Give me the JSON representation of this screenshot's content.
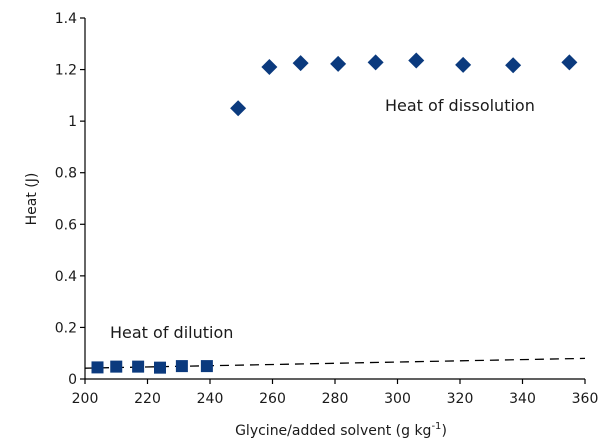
{
  "chart_data": {
    "type": "scatter",
    "xlabel": "Glycine/added solvent (g kg",
    "xlabel_sup": "-1",
    "xlabel_close": ")",
    "ylabel": "Heat (J)",
    "xlim": [
      200,
      360
    ],
    "ylim": [
      0,
      1.4
    ],
    "x_ticks": [
      "200",
      "220",
      "240",
      "260",
      "280",
      "300",
      "320",
      "340",
      "360"
    ],
    "y_ticks": [
      "0",
      "0.2",
      "0.4",
      "0.6",
      "0.8",
      "1",
      "1.2",
      "1.4"
    ],
    "grid": false,
    "colors": {
      "markers": "#0b3a7e",
      "axes": "#000000",
      "trend": "#000000"
    },
    "series": [
      {
        "marker": "diamond",
        "x": [
          249,
          259,
          269,
          281,
          293,
          306,
          321,
          337,
          355
        ],
        "y": [
          1.05,
          1.21,
          1.225,
          1.222,
          1.228,
          1.235,
          1.218,
          1.217,
          1.228
        ]
      },
      {
        "marker": "square",
        "x": [
          204,
          210,
          217,
          224,
          231,
          239
        ],
        "y": [
          0.045,
          0.048,
          0.048,
          0.044,
          0.05,
          0.05
        ]
      }
    ],
    "trendline": {
      "style": "dashed",
      "x": [
        200,
        360
      ],
      "y": [
        0.042,
        0.08
      ]
    },
    "annotations": [
      "Heat of dissolution",
      "Heat of dilution"
    ]
  }
}
